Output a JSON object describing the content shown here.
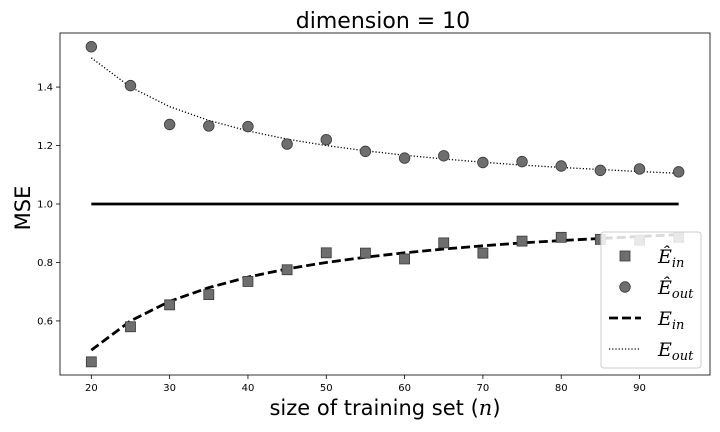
{
  "chart_data": {
    "type": "scatter",
    "title": "dimension = 10",
    "xlabel": "size of training set ($n$)",
    "ylabel": "MSE",
    "xlim": [
      16,
      99
    ],
    "ylim": [
      0.415,
      1.585
    ],
    "xticks": [
      20,
      30,
      40,
      50,
      60,
      70,
      80,
      90
    ],
    "yticks": [
      0.6,
      0.8,
      1.0,
      1.2,
      1.4
    ],
    "grid": false,
    "legend_position": "bottom-right",
    "series": [
      {
        "name": "Ê_in",
        "kind": "scatter",
        "marker": "square",
        "color": "#6e6e6e",
        "x": [
          20,
          25,
          30,
          35,
          40,
          45,
          50,
          55,
          60,
          65,
          70,
          75,
          80,
          85,
          90,
          95
        ],
        "y": [
          0.46,
          0.58,
          0.655,
          0.69,
          0.735,
          0.775,
          0.833,
          0.832,
          0.812,
          0.867,
          0.832,
          0.873,
          0.886,
          0.879,
          0.876,
          0.886
        ]
      },
      {
        "name": "Ê_out",
        "kind": "scatter",
        "marker": "circle",
        "color": "#6e6e6e",
        "x": [
          20,
          25,
          30,
          35,
          40,
          45,
          50,
          55,
          60,
          65,
          70,
          75,
          80,
          85,
          90,
          95
        ],
        "y": [
          1.538,
          1.405,
          1.272,
          1.267,
          1.265,
          1.205,
          1.22,
          1.18,
          1.157,
          1.165,
          1.142,
          1.145,
          1.13,
          1.115,
          1.12,
          1.11
        ]
      },
      {
        "name": "E_in",
        "kind": "line",
        "style": "dashed",
        "color": "#000000",
        "x": [
          20,
          25,
          30,
          35,
          40,
          45,
          50,
          55,
          60,
          65,
          70,
          75,
          80,
          85,
          90,
          95
        ],
        "y": [
          0.5,
          0.6,
          0.667,
          0.714,
          0.75,
          0.778,
          0.8,
          0.818,
          0.833,
          0.846,
          0.857,
          0.867,
          0.875,
          0.882,
          0.889,
          0.895
        ]
      },
      {
        "name": "E_out",
        "kind": "line",
        "style": "dotted",
        "color": "#000000",
        "x": [
          20,
          25,
          30,
          35,
          40,
          45,
          50,
          55,
          60,
          65,
          70,
          75,
          80,
          85,
          90,
          95
        ],
        "y": [
          1.5,
          1.4,
          1.333,
          1.286,
          1.25,
          1.222,
          1.2,
          1.182,
          1.167,
          1.154,
          1.143,
          1.133,
          1.125,
          1.118,
          1.111,
          1.105
        ]
      },
      {
        "kind": "line",
        "style": "solid",
        "color": "#000000",
        "x": [
          20,
          95
        ],
        "y": [
          1.0,
          1.0
        ]
      }
    ],
    "legend": [
      {
        "base": "Ê",
        "sub": "in",
        "marker": "square"
      },
      {
        "base": "Ê",
        "sub": "out",
        "marker": "circle"
      },
      {
        "base": "E",
        "sub": "in",
        "marker": "dashed"
      },
      {
        "base": "E",
        "sub": "out",
        "marker": "dotted"
      }
    ]
  }
}
